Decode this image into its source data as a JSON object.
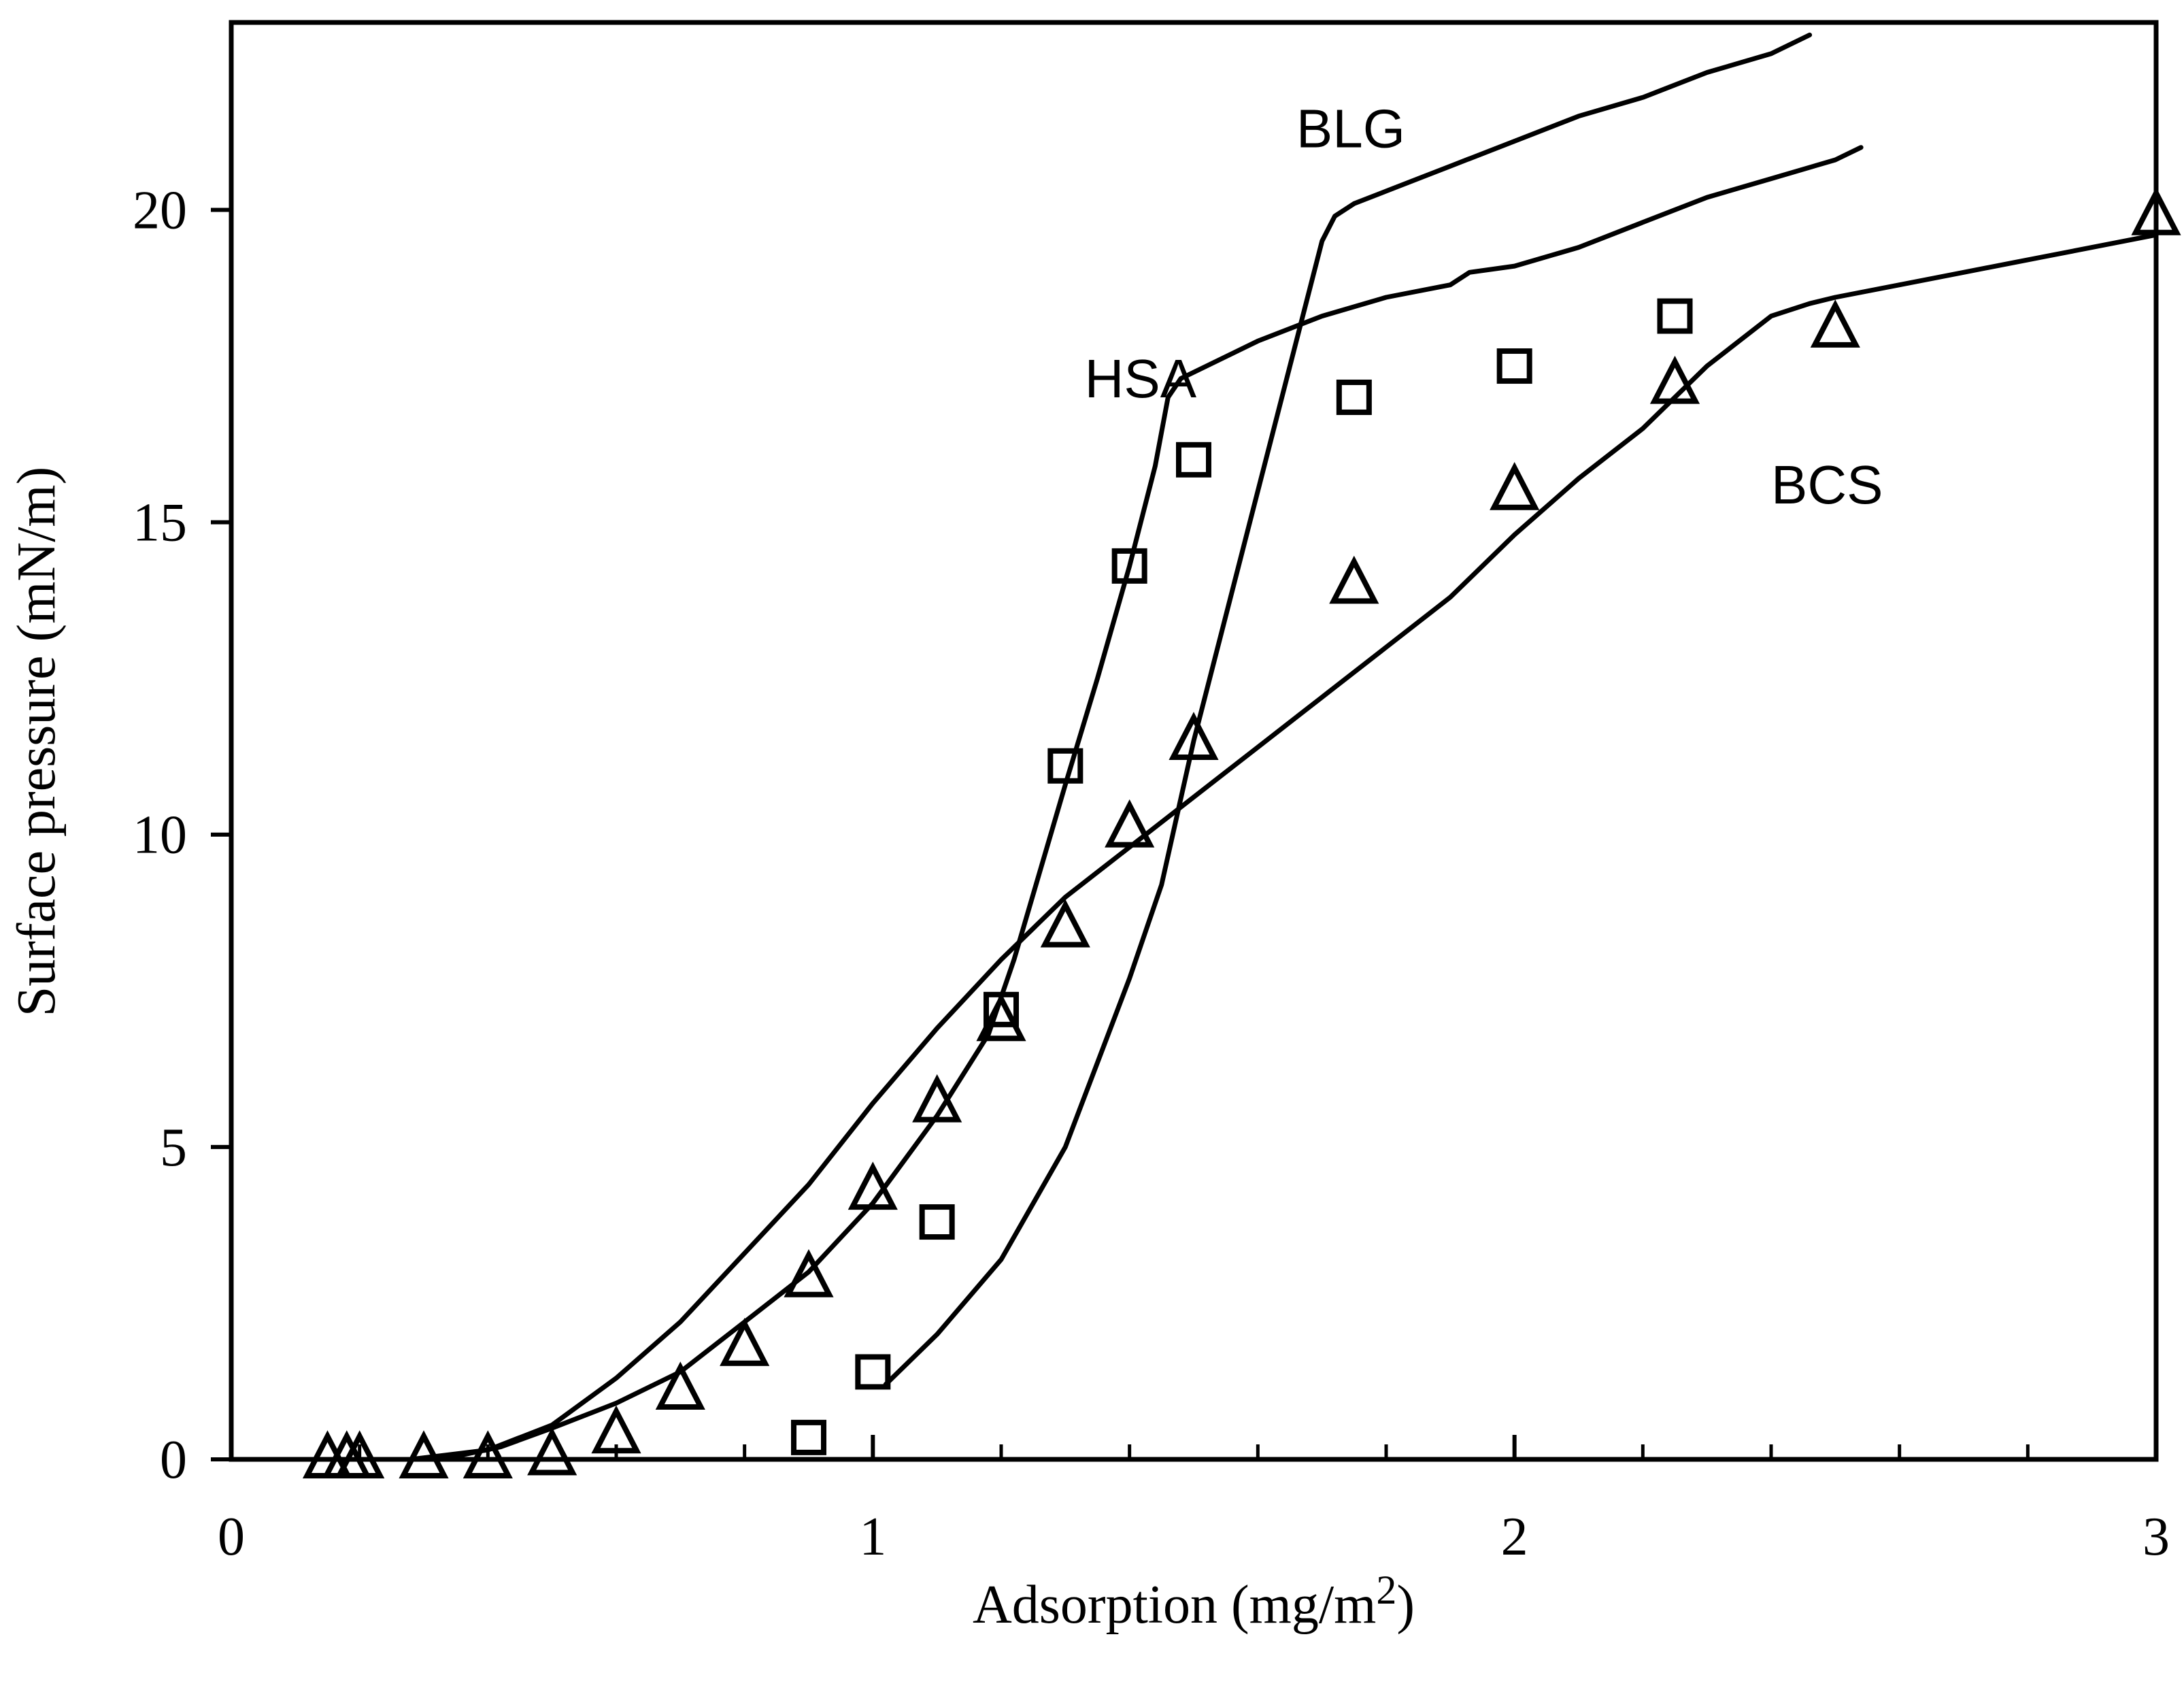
{
  "chart_data": {
    "type": "line",
    "title": "",
    "xlabel": "Adsorption (mg/m",
    "xlabel_sup": "2",
    "xlabel_tail": ")",
    "ylabel": "Surface pressure (mN/m)",
    "xlim": [
      0,
      3
    ],
    "ylim": [
      0,
      23
    ],
    "x_ticks": [
      0,
      1,
      2,
      3
    ],
    "y_ticks": [
      0,
      5,
      10,
      15,
      20
    ],
    "x_minor_step": 0.2,
    "grid": false,
    "legend": "none",
    "series": [
      {
        "name": "HSA",
        "kind": "line",
        "label": "HSA",
        "label_pos": [
          1.33,
          17.0
        ],
        "x": [
          0.28,
          0.35,
          0.42,
          0.5,
          0.6,
          0.7,
          0.8,
          0.9,
          1.0,
          1.1,
          1.18,
          1.22,
          1.26,
          1.3,
          1.35,
          1.4,
          1.44,
          1.46,
          1.48,
          1.52,
          1.6,
          1.7,
          1.8,
          1.9,
          1.93,
          2.0,
          2.1,
          2.2,
          2.3,
          2.4,
          2.5,
          2.54
        ],
        "y": [
          0.0,
          0.05,
          0.2,
          0.5,
          0.9,
          1.4,
          2.2,
          3.0,
          4.1,
          5.5,
          6.8,
          8.0,
          9.4,
          10.8,
          12.5,
          14.3,
          15.9,
          17.0,
          17.3,
          17.5,
          17.9,
          18.3,
          18.6,
          18.8,
          19.0,
          19.1,
          19.4,
          19.8,
          20.2,
          20.5,
          20.8,
          21.0
        ]
      },
      {
        "name": "BLG",
        "kind": "line",
        "label": "BLG",
        "label_pos": [
          1.66,
          21.0
        ],
        "x": [
          1.02,
          1.1,
          1.2,
          1.3,
          1.4,
          1.45,
          1.5,
          1.55,
          1.6,
          1.65,
          1.7,
          1.72,
          1.75,
          1.8,
          1.9,
          2.0,
          2.1,
          2.2,
          2.3,
          2.4,
          2.46
        ],
        "y": [
          1.2,
          2.0,
          3.2,
          5.0,
          7.7,
          9.2,
          11.5,
          13.5,
          15.5,
          17.5,
          19.5,
          19.9,
          20.1,
          20.3,
          20.7,
          21.1,
          21.5,
          21.8,
          22.2,
          22.5,
          22.8
        ]
      },
      {
        "name": "BCS",
        "kind": "line",
        "label": "BCS",
        "label_pos": [
          2.4,
          15.3
        ],
        "x": [
          0.28,
          0.4,
          0.5,
          0.6,
          0.7,
          0.8,
          0.9,
          1.0,
          1.1,
          1.2,
          1.3,
          1.4,
          1.5,
          1.6,
          1.7,
          1.8,
          1.9,
          2.0,
          2.1,
          2.2,
          2.3,
          2.4,
          2.46,
          2.5,
          2.6,
          2.7,
          2.8,
          2.9,
          3.0
        ],
        "y": [
          0.0,
          0.15,
          0.55,
          1.3,
          2.2,
          3.3,
          4.4,
          5.7,
          6.9,
          8.0,
          9.0,
          9.8,
          10.6,
          11.4,
          12.2,
          13.0,
          13.8,
          14.8,
          15.7,
          16.5,
          17.5,
          18.3,
          18.5,
          18.6,
          18.8,
          19.0,
          19.2,
          19.4,
          19.6
        ]
      },
      {
        "name": "HSA (data)",
        "kind": "square",
        "x": [
          0.9,
          1.0,
          1.1,
          1.2,
          1.3,
          1.4,
          1.5,
          1.75,
          2.0,
          2.25
        ],
        "y": [
          0.35,
          1.4,
          3.8,
          7.2,
          11.1,
          14.3,
          16.0,
          17.0,
          17.5,
          18.3
        ]
      },
      {
        "name": "BCS (data)",
        "kind": "triangle",
        "x": [
          0.15,
          0.18,
          0.2,
          0.3,
          0.4,
          0.5,
          0.6,
          0.7,
          0.8,
          0.9,
          1.0,
          1.1,
          1.2,
          1.3,
          1.4,
          1.5,
          1.75,
          2.0,
          2.25,
          2.5,
          3.0
        ],
        "y": [
          0.0,
          0.0,
          0.0,
          0.0,
          0.0,
          0.05,
          0.4,
          1.1,
          1.8,
          2.9,
          4.3,
          5.7,
          7.0,
          8.5,
          10.1,
          11.5,
          14.0,
          15.5,
          17.2,
          18.1,
          19.9
        ]
      }
    ]
  }
}
